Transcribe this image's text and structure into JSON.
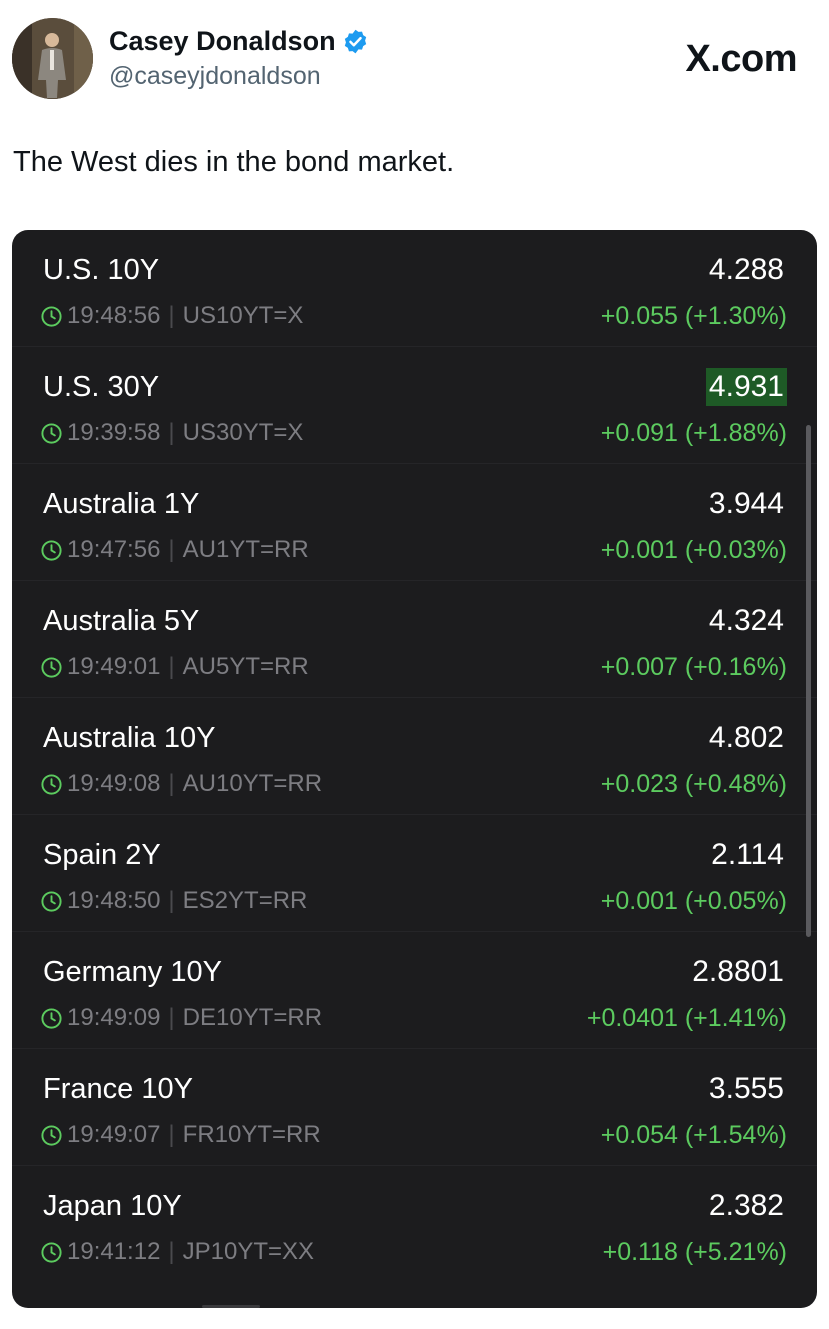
{
  "tweet": {
    "author_name": "Casey Donaldson",
    "author_handle": "@caseyjdonaldson",
    "site_label": "X.com",
    "text": "The West dies in the bond market.",
    "verified_icon": "verified-badge-icon",
    "verified_color": "#1d9bf0"
  },
  "quotes_card": {
    "background_color": "#1c1c1e",
    "change_color": "#5ccb5f",
    "highlight_color": "#1e5a26",
    "separator": "|",
    "rows": [
      {
        "name": "U.S. 10Y",
        "time": "19:48:56",
        "symbol": "US10YT=X",
        "price": "4.288",
        "change": "+0.055 (+1.30%)",
        "highlighted": false
      },
      {
        "name": "U.S. 30Y",
        "time": "19:39:58",
        "symbol": "US30YT=X",
        "price": "4.931",
        "change": "+0.091 (+1.88%)",
        "highlighted": true
      },
      {
        "name": "Australia 1Y",
        "time": "19:47:56",
        "symbol": "AU1YT=RR",
        "price": "3.944",
        "change": "+0.001 (+0.03%)",
        "highlighted": false
      },
      {
        "name": "Australia 5Y",
        "time": "19:49:01",
        "symbol": "AU5YT=RR",
        "price": "4.324",
        "change": "+0.007 (+0.16%)",
        "highlighted": false
      },
      {
        "name": "Australia 10Y",
        "time": "19:49:08",
        "symbol": "AU10YT=RR",
        "price": "4.802",
        "change": "+0.023 (+0.48%)",
        "highlighted": false
      },
      {
        "name": "Spain 2Y",
        "time": "19:48:50",
        "symbol": "ES2YT=RR",
        "price": "2.114",
        "change": "+0.001 (+0.05%)",
        "highlighted": false
      },
      {
        "name": "Germany 10Y",
        "time": "19:49:09",
        "symbol": "DE10YT=RR",
        "price": "2.8801",
        "change": "+0.0401 (+1.41%)",
        "highlighted": false
      },
      {
        "name": "France 10Y",
        "time": "19:49:07",
        "symbol": "FR10YT=RR",
        "price": "3.555",
        "change": "+0.054 (+1.54%)",
        "highlighted": false
      },
      {
        "name": "Japan 10Y",
        "time": "19:41:12",
        "symbol": "JP10YT=XX",
        "price": "2.382",
        "change": "+0.118 (+5.21%)",
        "highlighted": false
      }
    ]
  }
}
